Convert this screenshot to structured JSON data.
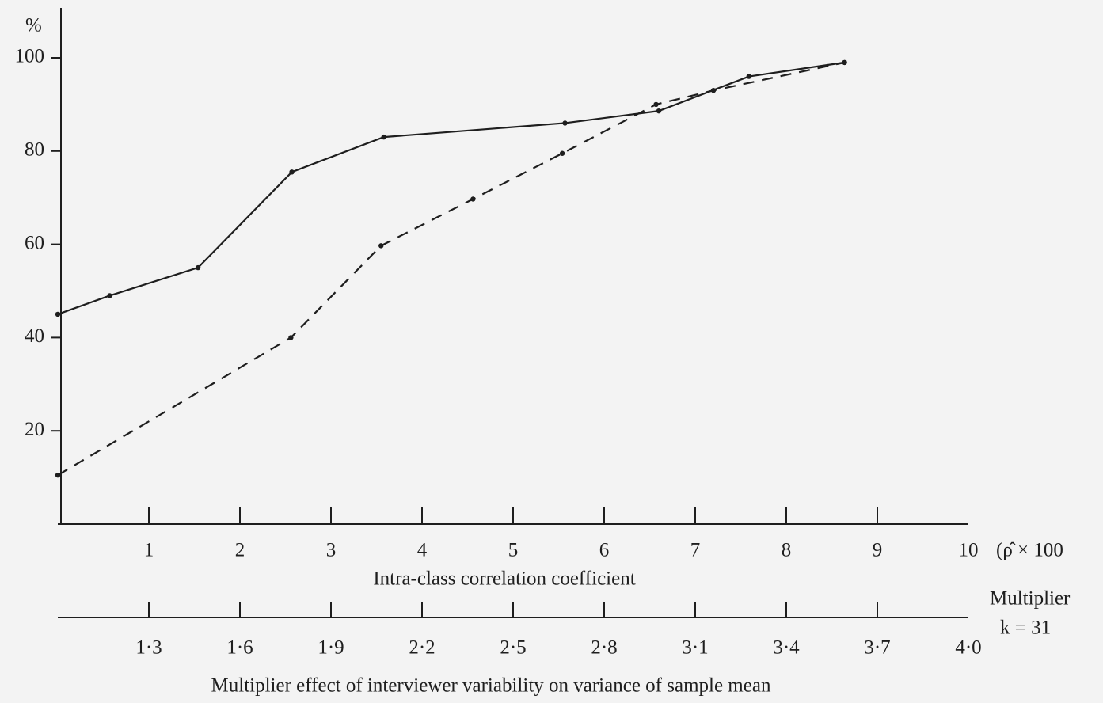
{
  "chart_data": {
    "type": "line",
    "y_axis_label": "%",
    "x_label": "Intra-class correlation coefficient",
    "x_unit_label": "(ρ̂ × 100",
    "x2_title": "Multiplier",
    "x2_subtitle": "k = 31",
    "x2_label": "Multiplier effect of interviewer variability on variance of sample mean",
    "xlim": [
      0,
      10
    ],
    "xticks": [
      1,
      2,
      3,
      4,
      5,
      6,
      7,
      8,
      9,
      10
    ],
    "x2lim": [
      1.0,
      4.0
    ],
    "x2ticks": [
      {
        "value": 1.3,
        "label": "1·3"
      },
      {
        "value": 1.6,
        "label": "1·6"
      },
      {
        "value": 1.9,
        "label": "1·9"
      },
      {
        "value": 2.2,
        "label": "2·2"
      },
      {
        "value": 2.5,
        "label": "2·5"
      },
      {
        "value": 2.8,
        "label": "2·8"
      },
      {
        "value": 3.1,
        "label": "3·1"
      },
      {
        "value": 3.4,
        "label": "3·4"
      },
      {
        "value": 3.7,
        "label": "3·7"
      },
      {
        "value": 4.0,
        "label": "4·0"
      }
    ],
    "ylim": [
      0,
      100
    ],
    "yticks": [
      20,
      40,
      60,
      80,
      100
    ],
    "series": [
      {
        "style": "solid",
        "color": "#1e1e1e",
        "x": [
          0,
          0.57,
          1.54,
          2.57,
          3.58,
          5.57,
          6.6,
          7.59,
          8.64
        ],
        "values": [
          45,
          49,
          55,
          75.5,
          83,
          86,
          88.6,
          96,
          99
        ]
      },
      {
        "style": "dashed",
        "color": "#1e1e1e",
        "x": [
          0,
          2.56,
          3.55,
          4.56,
          5.54,
          6.57,
          7.2,
          8.64
        ],
        "values": [
          10.5,
          40,
          59.7,
          69.7,
          79.5,
          90,
          93,
          99
        ]
      }
    ]
  }
}
